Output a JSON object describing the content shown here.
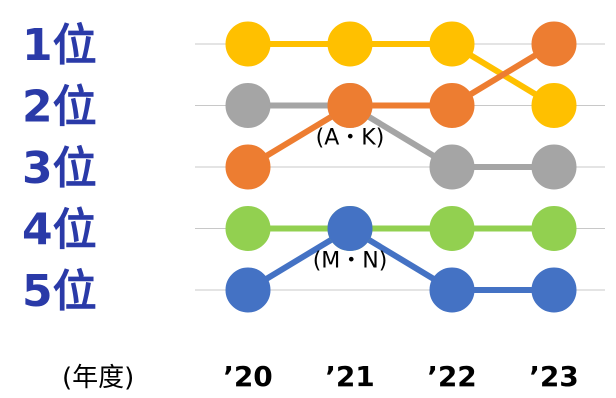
{
  "chart_data": {
    "type": "line",
    "x": [
      "’20",
      "’21",
      "’22",
      "’23"
    ],
    "y_categories": [
      "1位",
      "2位",
      "3位",
      "4位",
      "5位"
    ],
    "xlabel": "(年度)",
    "y_inverted": true,
    "series": [
      {
        "color": "#FFC000",
        "values": [
          1,
          1,
          1,
          2
        ]
      },
      {
        "color": "#A5A5A5",
        "values": [
          2,
          2,
          3,
          3
        ]
      },
      {
        "color": "#ED7D31",
        "values": [
          3,
          2,
          2,
          1
        ]
      },
      {
        "color": "#92D050",
        "values": [
          4,
          4,
          4,
          4
        ]
      },
      {
        "color": "#4472C4",
        "values": [
          5,
          4,
          5,
          5
        ]
      }
    ],
    "annotations": [
      {
        "text": "(A・K)",
        "x": "’21",
        "y": 2.5
      },
      {
        "text": "(M・N)",
        "x": "’21",
        "y": 4.5
      }
    ]
  }
}
